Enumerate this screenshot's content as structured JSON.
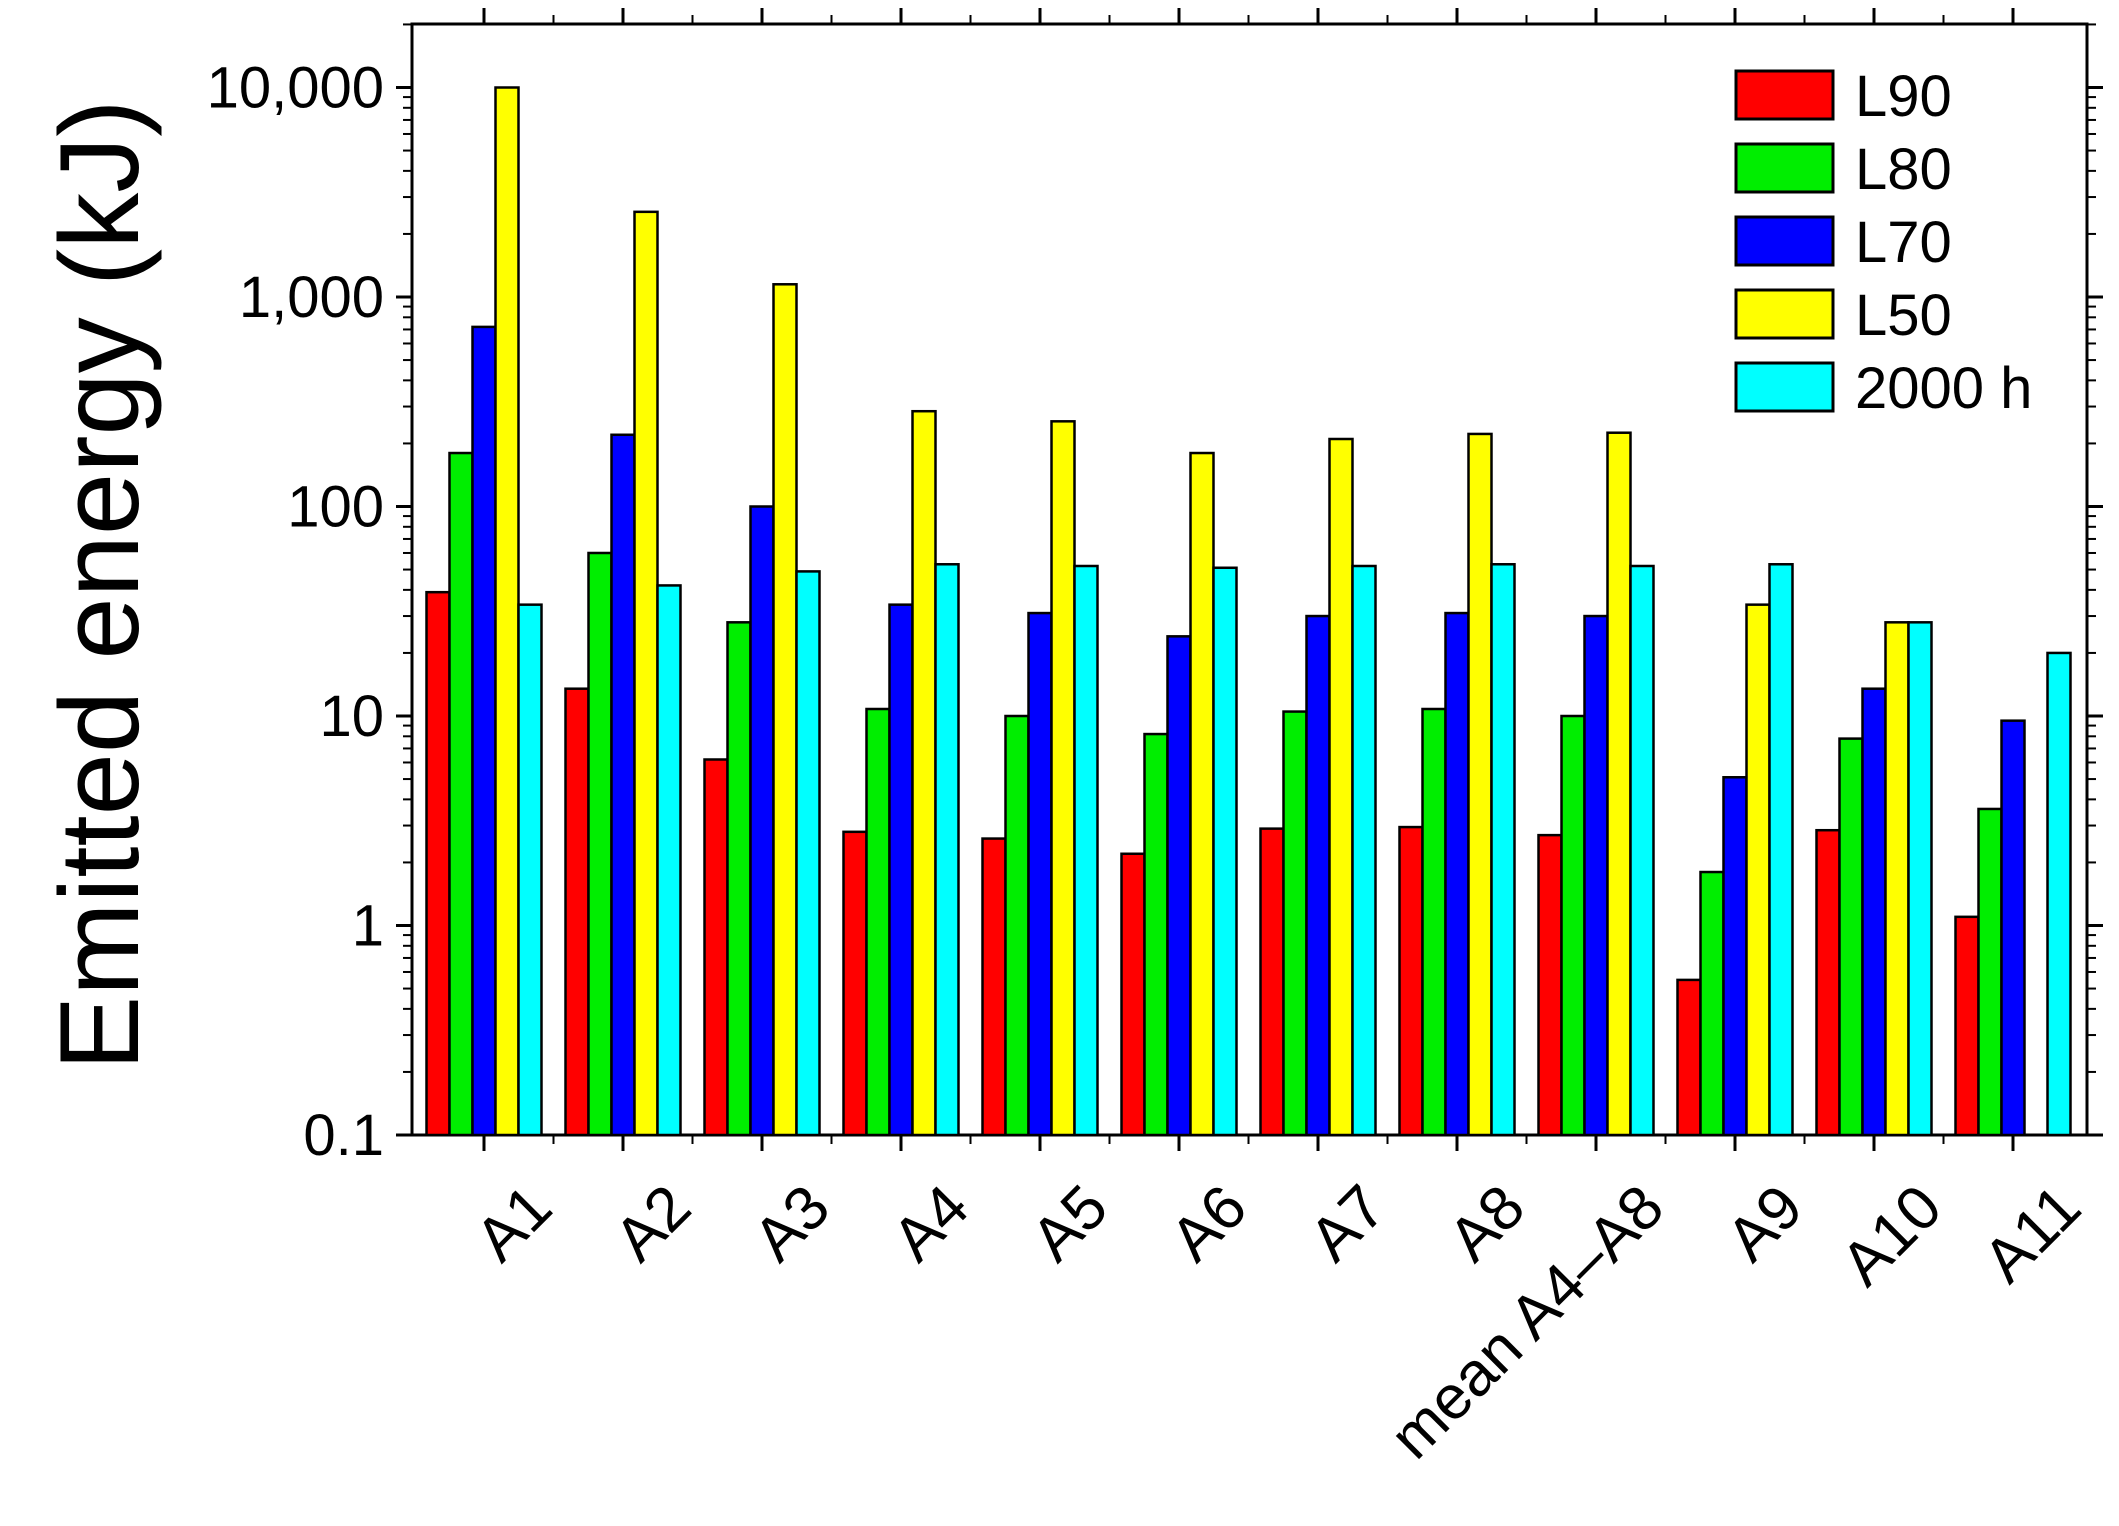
{
  "chart_data": {
    "type": "bar",
    "title": "",
    "xlabel": "",
    "ylabel": "Emitted energy (kJ)",
    "yscale": "log",
    "ylim": [
      0.1,
      20000
    ],
    "yticks": [
      {
        "value": 0.1,
        "label": "0.1"
      },
      {
        "value": 1,
        "label": "1"
      },
      {
        "value": 10,
        "label": "10"
      },
      {
        "value": 100,
        "label": "100"
      },
      {
        "value": 1000,
        "label": "1,000"
      },
      {
        "value": 10000,
        "label": "10,000"
      }
    ],
    "categories": [
      "A1",
      "A2",
      "A3",
      "A4",
      "A5",
      "A6",
      "A7",
      "A8",
      "mean A4–A8",
      "A9",
      "A10",
      "A11"
    ],
    "series": [
      {
        "name": "L90",
        "color": "#ff0000",
        "values": [
          39,
          13.5,
          6.2,
          2.8,
          2.6,
          2.2,
          2.9,
          2.95,
          2.7,
          0.55,
          2.85,
          1.1
        ]
      },
      {
        "name": "L80",
        "color": "#00ee00",
        "values": [
          180,
          60,
          28,
          10.8,
          10,
          8.2,
          10.5,
          10.8,
          10,
          1.8,
          7.8,
          3.6
        ]
      },
      {
        "name": "L70",
        "color": "#0000ff",
        "values": [
          720,
          220,
          100,
          34,
          31,
          24,
          30,
          31,
          30,
          5.1,
          13.5,
          9.5
        ]
      },
      {
        "name": "L50",
        "color": "#ffff00",
        "values": [
          10000,
          2550,
          1150,
          285,
          255,
          180,
          210,
          222,
          225,
          34,
          28,
          null
        ]
      },
      {
        "name": "2000 h",
        "color": "#00ffff",
        "values": [
          34,
          42,
          49,
          53,
          52,
          51,
          52,
          53,
          52,
          53,
          28,
          20
        ]
      }
    ],
    "legend": {
      "position": "top-right"
    },
    "grid": false
  }
}
